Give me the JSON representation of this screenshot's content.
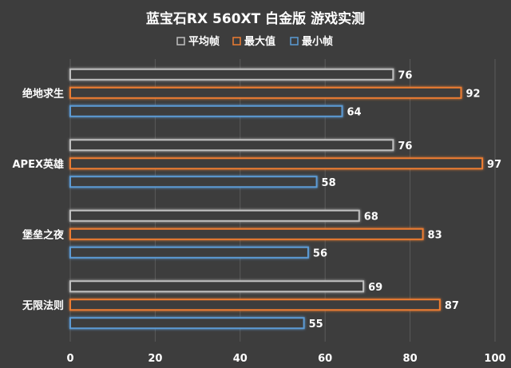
{
  "chart_data": {
    "type": "bar",
    "orientation": "horizontal",
    "title": "蓝宝石RX 560XT 白金版 游戏实测",
    "categories": [
      "绝地求生",
      "APEX英雄",
      "堡垒之夜",
      "无限法则"
    ],
    "series": [
      {
        "name": "平均帧",
        "values": [
          76,
          76,
          68,
          69
        ],
        "color": "#bfbfbf"
      },
      {
        "name": "最大值",
        "values": [
          92,
          97,
          83,
          87
        ],
        "color": "#ed7d31"
      },
      {
        "name": "最小帧",
        "values": [
          64,
          58,
          56,
          55
        ],
        "color": "#5b9bd5"
      }
    ],
    "xlim": [
      0,
      100
    ],
    "xticks": [
      0,
      20,
      40,
      60,
      80,
      100
    ],
    "grid": true,
    "legend": "top-center",
    "data_labels": true
  }
}
